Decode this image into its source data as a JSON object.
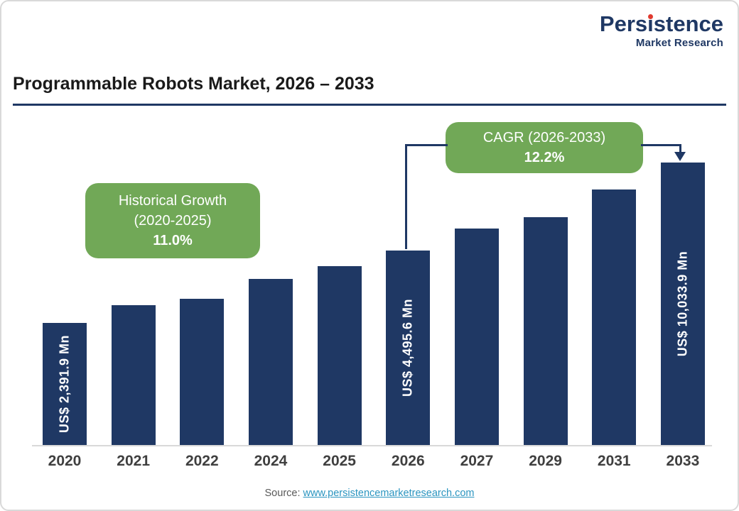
{
  "logo": {
    "brand_pre": "Pers",
    "brand_i": "i",
    "brand_post": "stence",
    "subtitle": "Market Research"
  },
  "title": "Programmable Robots Market, 2026 – 2033",
  "annotations": {
    "historical": {
      "line1": "Historical Growth",
      "line2": "(2020-2025)",
      "value": "11.0%"
    },
    "cagr": {
      "line1": "CAGR (2026-2033)",
      "value": "12.2%"
    }
  },
  "source": {
    "label": "Source:",
    "link": "www.persistencemarketresearch.com"
  },
  "colors": {
    "bar": "#1f3864",
    "annotation_green": "#71a857",
    "connector": "#1f3864",
    "link": "#2b95c0",
    "logo_accent": "#e03a2f"
  },
  "chart_data": {
    "type": "bar",
    "title": "Programmable Robots Market, 2026 – 2033",
    "unit": "US$ Mn",
    "categories": [
      "2020",
      "2021",
      "2022",
      "2024",
      "2025",
      "2026",
      "2027",
      "2029",
      "2031",
      "2033"
    ],
    "values": [
      2391.9,
      null,
      null,
      null,
      null,
      4495.6,
      null,
      null,
      null,
      10033.9
    ],
    "bar_labels": [
      "US$ 2,391.9 Mn",
      null,
      null,
      null,
      null,
      "US$ 4,495.6  Mn",
      null,
      null,
      null,
      "US$ 10,033.9 Mn"
    ],
    "bar_heights_pct": [
      43.2,
      49.5,
      51.8,
      58.8,
      63.3,
      68.8,
      76.6,
      80.7,
      90.5,
      100
    ],
    "annotations": [
      {
        "text": "Historical Growth (2020-2025)",
        "value": "11.0%",
        "applies_to": "2020-2025"
      },
      {
        "text": "CAGR (2026-2033)",
        "value": "12.2%",
        "applies_to": "2026-2033"
      }
    ],
    "gridlines": false,
    "y_axis_visible": false,
    "legend": false
  }
}
